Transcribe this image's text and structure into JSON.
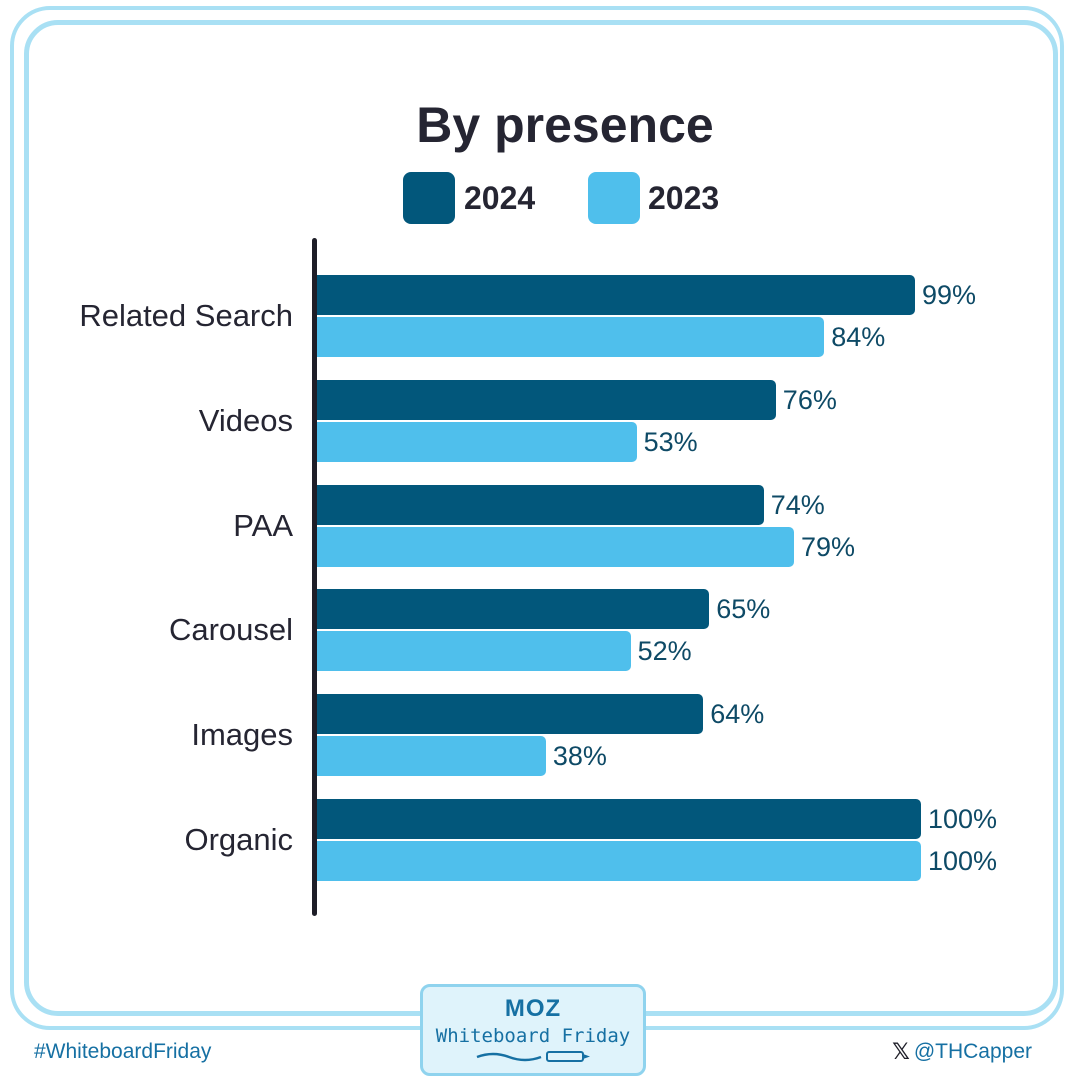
{
  "chart_data": {
    "type": "bar",
    "orientation": "horizontal",
    "title": "By presence",
    "categories": [
      "Related Search",
      "Videos",
      "PAA",
      "Carousel",
      "Images",
      "Organic"
    ],
    "series": [
      {
        "name": "2024",
        "color": "#02577b",
        "values": [
          99,
          76,
          74,
          65,
          64,
          100
        ],
        "labels": [
          "99%",
          "76%",
          "74%",
          "65%",
          "64%",
          "100%"
        ]
      },
      {
        "name": "2023",
        "color": "#4fbfec",
        "values": [
          84,
          53,
          79,
          52,
          38,
          100
        ],
        "labels": [
          "84%",
          "53%",
          "79%",
          "52%",
          "38%",
          "100%"
        ]
      }
    ],
    "xlim": [
      0,
      100
    ],
    "grid": false,
    "legend_position": "top"
  },
  "footer": {
    "hashtag": "#WhiteboardFriday",
    "handle": "@THCapper",
    "badge_logo": "MOZ",
    "badge_text": "Whiteboard Friday"
  },
  "icons": {
    "x_logo": "x-logo-icon"
  }
}
